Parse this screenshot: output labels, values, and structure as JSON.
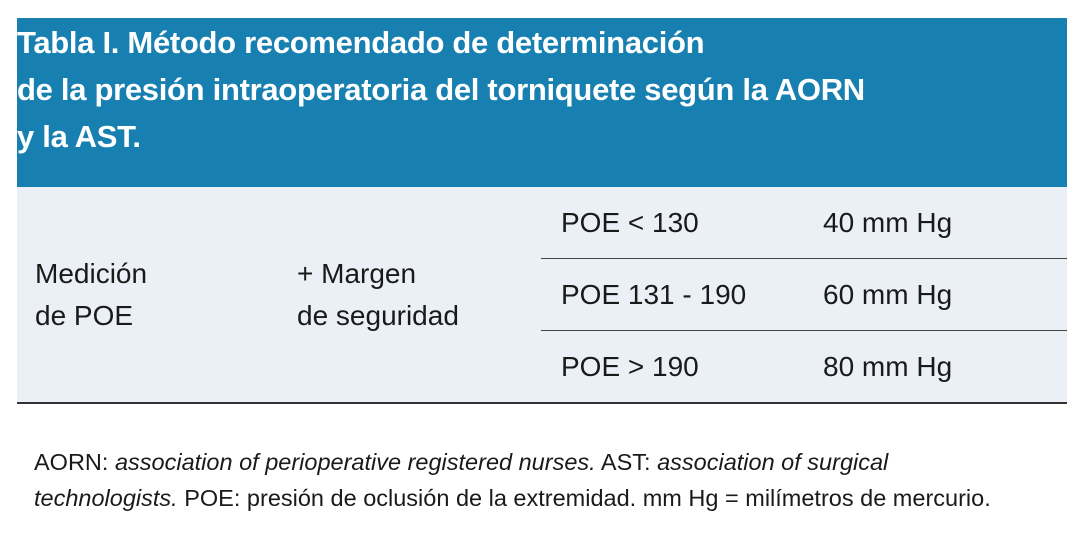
{
  "table": {
    "title_lines": [
      "Tabla I. Método recomendado de determinación",
      "de la presión intraoperatoria del torniquete según la AORN",
      "y la AST."
    ],
    "col1": [
      "Medición",
      "de POE"
    ],
    "col2": [
      "+ Margen",
      "de seguridad"
    ],
    "rows": [
      {
        "range": "POE < 130",
        "value": "40 mm Hg"
      },
      {
        "range": "POE 131 - 190",
        "value": "60 mm Hg"
      },
      {
        "range": "POE > 190",
        "value": "80 mm Hg"
      }
    ],
    "colors": {
      "header": "#1780b0",
      "body": "#ebf0f7"
    }
  },
  "footnote": {
    "aorn_label": "AORN: ",
    "aorn_def": "association of perioperative registered nurses.",
    "ast_label": " AST: ",
    "ast_def": "association of surgical technologists.",
    "rest": " POE: presión de oclusión de la extremidad. mm Hg = milímetros de mercurio."
  }
}
